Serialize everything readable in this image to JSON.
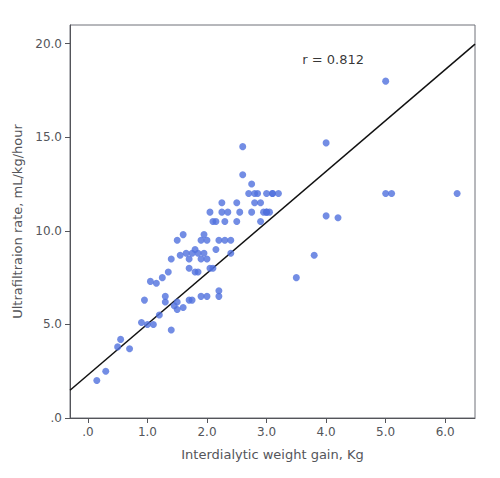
{
  "chart_data": {
    "type": "scatter",
    "xlabel": "Interdialytic weight gain, Kg",
    "ylabel": "Ultrafiltraion rate, mL/kg/hour",
    "grid": false,
    "series": [
      {
        "type": "scatter",
        "x": [
          0.15,
          0.3,
          0.5,
          0.55,
          0.7,
          0.9,
          0.95,
          1.0,
          1.05,
          1.1,
          1.15,
          1.2,
          1.25,
          1.3,
          1.3,
          1.35,
          1.4,
          1.4,
          1.45,
          1.5,
          1.5,
          1.5,
          1.55,
          1.6,
          1.6,
          1.65,
          1.7,
          1.7,
          1.7,
          1.75,
          1.75,
          1.8,
          1.8,
          1.85,
          1.85,
          1.9,
          1.9,
          1.9,
          1.95,
          1.95,
          2.0,
          2.0,
          2.0,
          2.05,
          2.05,
          2.1,
          2.1,
          2.15,
          2.15,
          2.2,
          2.2,
          2.2,
          2.25,
          2.25,
          2.3,
          2.3,
          2.35,
          2.4,
          2.4,
          2.5,
          2.5,
          2.55,
          2.6,
          2.6,
          2.7,
          2.75,
          2.75,
          2.8,
          2.8,
          2.85,
          2.9,
          2.9,
          2.95,
          3.0,
          3.0,
          3.0,
          3.05,
          3.1,
          3.1,
          3.2,
          3.5,
          3.8,
          4.0,
          4.0,
          4.2,
          5.0,
          5.0,
          5.1,
          6.2
        ],
        "values": [
          2.0,
          2.5,
          3.8,
          4.2,
          3.7,
          5.1,
          6.3,
          5.0,
          7.3,
          5.0,
          7.2,
          5.5,
          7.5,
          6.2,
          6.5,
          7.8,
          4.7,
          8.5,
          6.0,
          5.8,
          6.2,
          9.5,
          8.7,
          5.9,
          9.8,
          8.8,
          6.3,
          8.0,
          8.5,
          6.3,
          8.8,
          7.8,
          9.0,
          7.8,
          8.8,
          6.5,
          8.5,
          9.5,
          8.8,
          9.8,
          6.5,
          8.5,
          9.5,
          8.0,
          11.0,
          8.0,
          10.5,
          9.0,
          10.5,
          6.5,
          6.8,
          9.5,
          11.0,
          11.5,
          9.5,
          10.5,
          11.0,
          8.8,
          9.5,
          10.5,
          11.5,
          11.0,
          13.0,
          14.5,
          12.0,
          11.0,
          12.5,
          11.5,
          12.0,
          12.0,
          10.5,
          11.5,
          11.0,
          11.0,
          11.0,
          12.0,
          11.0,
          12.0,
          12.0,
          12.0,
          7.5,
          8.7,
          14.7,
          10.8,
          10.7,
          18.0,
          12.0,
          12.0,
          12.0
        ]
      },
      {
        "type": "line",
        "color": "#111111",
        "x": [
          -0.3,
          6.5
        ],
        "values": [
          1.484,
          19.98
        ]
      }
    ],
    "annotations": [
      {
        "text": "r = 0.812",
        "x": 3.6,
        "y": 19.5
      }
    ],
    "xlim": [
      -0.3,
      6.5
    ],
    "ylim": [
      0.0,
      21.0
    ],
    "xticks": [
      {
        "value": 0.0,
        "label": ".0"
      },
      {
        "value": 1.0,
        "label": "1.0"
      },
      {
        "value": 2.0,
        "label": "2.0"
      },
      {
        "value": 3.0,
        "label": "3.0"
      },
      {
        "value": 4.0,
        "label": "4.0"
      },
      {
        "value": 5.0,
        "label": "5.0"
      },
      {
        "value": 6.0,
        "label": "6.0"
      }
    ],
    "yticks": [
      {
        "value": 0.0,
        "label": ".0"
      },
      {
        "value": 5.0,
        "label": "5.0"
      },
      {
        "value": 10.0,
        "label": "10.0"
      },
      {
        "value": 15.0,
        "label": "15.0"
      },
      {
        "value": 20.0,
        "label": "20.0"
      }
    ]
  }
}
